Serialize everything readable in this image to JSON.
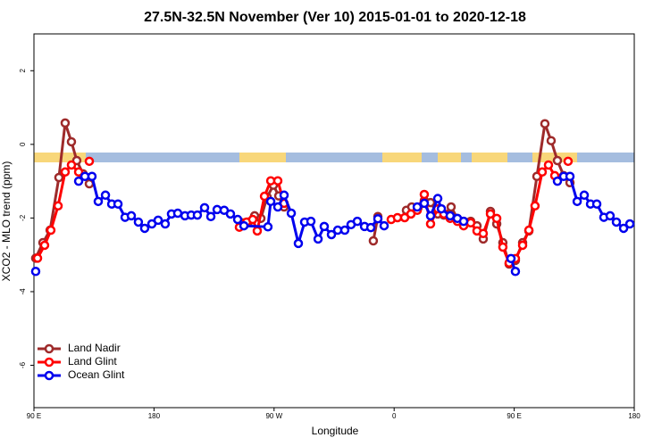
{
  "chart_data": {
    "type": "line",
    "title": "27.5N-32.5N November (Ver 10)   2015-01-01 to 2020-12-18",
    "x_label": "Longitude",
    "y_label": "XCO2 - MLO trend (ppm)",
    "xlim": [
      90,
      540
    ],
    "ylim": [
      -7.15,
      3
    ],
    "xticks": [
      {
        "value": 90,
        "label": "90 E"
      },
      {
        "value": 180,
        "label": "180"
      },
      {
        "value": 270,
        "label": "90 W"
      },
      {
        "value": 360,
        "label": "0"
      },
      {
        "value": 450,
        "label": "90 E"
      },
      {
        "value": 540,
        "label": "180"
      }
    ],
    "yticks": [
      2,
      0,
      -2,
      -4,
      -6
    ],
    "legend": "bottom-left",
    "series": [
      {
        "name": "Land Nadir",
        "color": "#9e2a2a",
        "x": [
          91.3,
          96.7,
          102.1,
          108.7,
          113.4,
          118.1,
          122.1,
          126.8,
          131.5,
          null,
          246,
          250.7,
          255.4,
          260.1,
          264.8,
          269.5,
          273.5,
          277.5,
          null,
          344.4,
          347.8,
          null,
          369.2,
          373.2,
          377.9,
          382.6,
          387.3,
          392.7,
          397.3,
          402.7,
          407.4,
          412.1,
          417.4,
          422.1,
          426.8,
          432.2,
          436.9,
          441.5,
          446.2,
          450.9,
          456.3,
          461,
          467,
          473,
          477.7,
          482.4,
          487.1,
          491.8
        ],
        "values": [
          -3.09,
          -2.67,
          -2.33,
          -0.9,
          0.58,
          0.07,
          -0.44,
          -0.8,
          -1.07,
          null,
          -2.13,
          -2.11,
          -1.94,
          -2.01,
          -1.43,
          -1.11,
          -1.4,
          -1.7,
          null,
          -2.62,
          -1.96,
          null,
          -1.79,
          -1.7,
          -1.72,
          -1.53,
          -1.58,
          -1.89,
          -1.92,
          -1.7,
          -2.01,
          -2.09,
          -2.09,
          -2.21,
          -2.57,
          -1.82,
          -2.16,
          -2.67,
          -3.25,
          -3.15,
          -2.67,
          -2.35,
          -0.87,
          0.56,
          0.1,
          -0.44,
          -0.85,
          -1.04
        ]
      },
      {
        "name": "Land Glint",
        "color": "#ff0000",
        "x": [
          92.7,
          98,
          102.7,
          108.1,
          113.4,
          118.1,
          123.5,
          null,
          131.5,
          null,
          244,
          249.4,
          254,
          257.4,
          262.8,
          267.5,
          272.8,
          277.5,
          null,
          357.8,
          362.5,
          367.9,
          372.6,
          377.3,
          382.6,
          387.3,
          392.7,
          397.3,
          402,
          407.4,
          412.1,
          417.4,
          422.1,
          426.8,
          432.2,
          436.9,
          441.5,
          446.2,
          450.9,
          456.3,
          461,
          465.6,
          471,
          475.7,
          480.4,
          null,
          490.4
        ],
        "values": [
          -3.09,
          -2.74,
          -2.33,
          -1.67,
          -0.75,
          -0.56,
          -0.75,
          null,
          -0.46,
          null,
          -2.25,
          -2.11,
          -2.04,
          -2.35,
          -1.41,
          -0.99,
          -0.99,
          -1.6,
          null,
          -2.04,
          -1.99,
          -1.99,
          -1.89,
          -1.79,
          -1.36,
          -2.16,
          -1.75,
          -1.89,
          -2.01,
          -2.09,
          -2.21,
          -2.13,
          -2.35,
          -2.42,
          -1.89,
          -2.01,
          -2.79,
          -3.22,
          -3.1,
          -2.74,
          -2.33,
          -1.67,
          -0.75,
          -0.56,
          -0.85,
          null,
          -0.46
        ]
      },
      {
        "name": "Ocean Glint",
        "color": "#0000ee",
        "x": [
          91.3,
          null,
          123.5,
          128.2,
          133.5,
          138.2,
          143.6,
          148.3,
          153,
          158.3,
          163,
          168.3,
          173,
          178.4,
          183.1,
          188.4,
          193.1,
          197.8,
          203.2,
          207.9,
          212.5,
          217.9,
          222.6,
          227.3,
          232.6,
          237.3,
          242.7,
          247.4,
          265.4,
          267.5,
          272.8,
          277.5,
          282.9,
          288.2,
          292.9,
          297.6,
          303,
          307.6,
          313,
          317.7,
          323,
          327.7,
          332.4,
          337.8,
          342.5,
          347.8,
          352.5,
          null,
          377.3,
          382.6,
          387.3,
          392.7,
          395.4,
          402,
          407.4,
          412.1,
          null,
          447.6,
          450.9,
          null,
          482.4,
          487.1,
          491.8,
          497.2,
          502.5,
          507.2,
          511.9,
          517.2,
          521.9,
          526.6,
          532,
          536.7
        ],
        "values": [
          -3.45,
          null,
          -1.0,
          -0.87,
          -0.87,
          -1.55,
          -1.38,
          -1.62,
          -1.62,
          -1.98,
          -1.94,
          -2.11,
          -2.28,
          -2.16,
          -2.06,
          -2.16,
          -1.89,
          -1.87,
          -1.94,
          -1.92,
          -1.92,
          -1.72,
          -1.96,
          -1.77,
          -1.79,
          -1.89,
          -2.04,
          -2.21,
          -2.24,
          -1.55,
          -1.7,
          -1.38,
          -1.87,
          -2.69,
          -2.11,
          -2.09,
          -2.57,
          -2.23,
          -2.45,
          -2.33,
          -2.33,
          -2.18,
          -2.09,
          -2.23,
          -2.26,
          -2.02,
          -2.21,
          null,
          -1.7,
          -1.6,
          -1.94,
          -1.47,
          -1.75,
          -1.94,
          -2.01,
          -2.09,
          null,
          -3.1,
          -3.45,
          null,
          -1.0,
          -0.87,
          -0.87,
          -1.55,
          -1.38,
          -1.62,
          -1.62,
          -1.98,
          -1.94,
          -2.11,
          -2.28,
          -2.16
        ]
      }
    ]
  }
}
